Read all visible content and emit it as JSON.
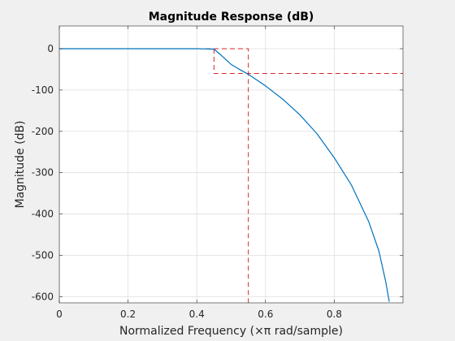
{
  "chart_data": {
    "type": "line",
    "title": "Magnitude Response (dB)",
    "xlabel_prefix": "Normalized Frequency  (",
    "xlabel_symbol": "×π",
    "xlabel_suffix": " rad/sample)",
    "ylabel": "Magnitude (dB)",
    "xlim": [
      0,
      1
    ],
    "ylim": [
      -615,
      55
    ],
    "xticks": [
      0,
      0.2,
      0.4,
      0.6,
      0.8
    ],
    "xtick_labels": [
      "0",
      "0.2",
      "0.4",
      "0.6",
      "0.8"
    ],
    "yticks": [
      0,
      -100,
      -200,
      -300,
      -400,
      -500,
      -600
    ],
    "ytick_labels": [
      "0",
      "-100",
      "-200",
      "-300",
      "-400",
      "-500",
      "-600"
    ],
    "grid": true,
    "series": [
      {
        "color": "#0072bd",
        "x": [
          0,
          0.1,
          0.2,
          0.3,
          0.4,
          0.45,
          0.47,
          0.5,
          0.52,
          0.55,
          0.6,
          0.65,
          0.7,
          0.75,
          0.8,
          0.85,
          0.9,
          0.93,
          0.95,
          0.96
        ],
        "y": [
          0,
          0,
          0,
          0,
          0,
          -1,
          -15,
          -38,
          -48,
          -62,
          -90,
          -122,
          -160,
          -206,
          -264,
          -330,
          -418,
          -490,
          -565,
          -612
        ]
      }
    ],
    "spec_mask": {
      "color": "#d62728",
      "lines": [
        {
          "x": [
            0,
            0.55,
            0.55
          ],
          "y": [
            0,
            0,
            -615
          ]
        },
        {
          "x": [
            0.45,
            0.45,
            1
          ],
          "y": [
            0,
            -60,
            -60
          ]
        }
      ]
    }
  }
}
